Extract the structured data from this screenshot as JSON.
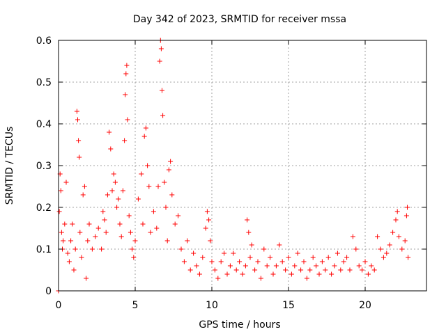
{
  "chart_data": {
    "type": "scatter",
    "title": "Day 342 of 2023, SRMTID for receiver mssa",
    "xlabel": "GPS time / hours",
    "ylabel": "SRMTID / TECUs",
    "xlim": [
      0,
      24
    ],
    "ylim": [
      0,
      0.6
    ],
    "xticks": [
      0,
      5,
      10,
      15,
      20
    ],
    "xtick_labels": [
      "0",
      "5",
      "10",
      "15",
      "20"
    ],
    "yticks": [
      0,
      0.1,
      0.2,
      0.3,
      0.4,
      0.5,
      0.6
    ],
    "ytick_labels": [
      "0",
      "0.1",
      "0.2",
      "0.3",
      "0.4",
      "0.5",
      "0.6"
    ],
    "grid": true,
    "marker": "+",
    "color": "#ff0000",
    "series": [
      {
        "name": "mssa",
        "points": [
          [
            0.0,
            0.0
          ],
          [
            0.05,
            0.19
          ],
          [
            0.1,
            0.28
          ],
          [
            0.15,
            0.24
          ],
          [
            0.2,
            0.14
          ],
          [
            0.25,
            0.1
          ],
          [
            0.3,
            0.12
          ],
          [
            0.4,
            0.16
          ],
          [
            0.5,
            0.26
          ],
          [
            0.6,
            0.09
          ],
          [
            0.7,
            0.07
          ],
          [
            0.8,
            0.12
          ],
          [
            0.9,
            0.16
          ],
          [
            1.0,
            0.05
          ],
          [
            1.1,
            0.1
          ],
          [
            1.2,
            0.43
          ],
          [
            1.25,
            0.41
          ],
          [
            1.3,
            0.36
          ],
          [
            1.35,
            0.32
          ],
          [
            1.4,
            0.14
          ],
          [
            1.5,
            0.08
          ],
          [
            1.6,
            0.23
          ],
          [
            1.7,
            0.25
          ],
          [
            1.8,
            0.03
          ],
          [
            1.9,
            0.12
          ],
          [
            2.0,
            0.16
          ],
          [
            2.2,
            0.1
          ],
          [
            2.4,
            0.13
          ],
          [
            2.6,
            0.15
          ],
          [
            2.8,
            0.1
          ],
          [
            2.9,
            0.19
          ],
          [
            3.0,
            0.17
          ],
          [
            3.1,
            0.14
          ],
          [
            3.2,
            0.23
          ],
          [
            3.3,
            0.38
          ],
          [
            3.4,
            0.34
          ],
          [
            3.5,
            0.24
          ],
          [
            3.6,
            0.28
          ],
          [
            3.7,
            0.26
          ],
          [
            3.8,
            0.2
          ],
          [
            3.9,
            0.22
          ],
          [
            4.0,
            0.16
          ],
          [
            4.1,
            0.13
          ],
          [
            4.2,
            0.24
          ],
          [
            4.3,
            0.36
          ],
          [
            4.35,
            0.47
          ],
          [
            4.4,
            0.52
          ],
          [
            4.45,
            0.54
          ],
          [
            4.5,
            0.41
          ],
          [
            4.6,
            0.18
          ],
          [
            4.7,
            0.14
          ],
          [
            4.8,
            0.1
          ],
          [
            4.9,
            0.08
          ],
          [
            5.0,
            0.12
          ],
          [
            5.2,
            0.22
          ],
          [
            5.4,
            0.28
          ],
          [
            5.5,
            0.16
          ],
          [
            5.6,
            0.37
          ],
          [
            5.7,
            0.39
          ],
          [
            5.8,
            0.3
          ],
          [
            5.9,
            0.25
          ],
          [
            6.0,
            0.14
          ],
          [
            6.2,
            0.19
          ],
          [
            6.4,
            0.15
          ],
          [
            6.5,
            0.25
          ],
          [
            6.6,
            0.55
          ],
          [
            6.65,
            0.6
          ],
          [
            6.7,
            0.58
          ],
          [
            6.75,
            0.48
          ],
          [
            6.8,
            0.42
          ],
          [
            6.9,
            0.26
          ],
          [
            7.0,
            0.2
          ],
          [
            7.1,
            0.12
          ],
          [
            7.2,
            0.29
          ],
          [
            7.3,
            0.31
          ],
          [
            7.4,
            0.23
          ],
          [
            7.6,
            0.16
          ],
          [
            7.8,
            0.18
          ],
          [
            8.0,
            0.1
          ],
          [
            8.2,
            0.07
          ],
          [
            8.4,
            0.12
          ],
          [
            8.6,
            0.05
          ],
          [
            8.8,
            0.09
          ],
          [
            9.0,
            0.06
          ],
          [
            9.2,
            0.04
          ],
          [
            9.4,
            0.08
          ],
          [
            9.6,
            0.15
          ],
          [
            9.7,
            0.19
          ],
          [
            9.8,
            0.17
          ],
          [
            9.9,
            0.12
          ],
          [
            10.0,
            0.07
          ],
          [
            10.2,
            0.05
          ],
          [
            10.4,
            0.03
          ],
          [
            10.6,
            0.07
          ],
          [
            10.8,
            0.09
          ],
          [
            11.0,
            0.04
          ],
          [
            11.2,
            0.06
          ],
          [
            11.4,
            0.09
          ],
          [
            11.6,
            0.05
          ],
          [
            11.8,
            0.07
          ],
          [
            12.0,
            0.04
          ],
          [
            12.2,
            0.06
          ],
          [
            12.3,
            0.17
          ],
          [
            12.4,
            0.14
          ],
          [
            12.5,
            0.08
          ],
          [
            12.6,
            0.11
          ],
          [
            12.8,
            0.05
          ],
          [
            13.0,
            0.07
          ],
          [
            13.2,
            0.03
          ],
          [
            13.4,
            0.1
          ],
          [
            13.6,
            0.06
          ],
          [
            13.8,
            0.08
          ],
          [
            14.0,
            0.04
          ],
          [
            14.2,
            0.06
          ],
          [
            14.4,
            0.11
          ],
          [
            14.6,
            0.07
          ],
          [
            14.8,
            0.05
          ],
          [
            15.0,
            0.08
          ],
          [
            15.2,
            0.04
          ],
          [
            15.4,
            0.06
          ],
          [
            15.6,
            0.09
          ],
          [
            15.8,
            0.05
          ],
          [
            16.0,
            0.07
          ],
          [
            16.2,
            0.03
          ],
          [
            16.4,
            0.05
          ],
          [
            16.6,
            0.08
          ],
          [
            16.8,
            0.06
          ],
          [
            17.0,
            0.04
          ],
          [
            17.2,
            0.07
          ],
          [
            17.4,
            0.05
          ],
          [
            17.6,
            0.08
          ],
          [
            17.8,
            0.04
          ],
          [
            18.0,
            0.06
          ],
          [
            18.2,
            0.09
          ],
          [
            18.4,
            0.05
          ],
          [
            18.6,
            0.07
          ],
          [
            18.8,
            0.08
          ],
          [
            19.0,
            0.05
          ],
          [
            19.2,
            0.13
          ],
          [
            19.4,
            0.1
          ],
          [
            19.6,
            0.06
          ],
          [
            19.8,
            0.05
          ],
          [
            20.0,
            0.07
          ],
          [
            20.2,
            0.04
          ],
          [
            20.4,
            0.06
          ],
          [
            20.6,
            0.05
          ],
          [
            20.8,
            0.13
          ],
          [
            21.0,
            0.1
          ],
          [
            21.2,
            0.08
          ],
          [
            21.4,
            0.09
          ],
          [
            21.6,
            0.11
          ],
          [
            21.8,
            0.14
          ],
          [
            22.0,
            0.17
          ],
          [
            22.1,
            0.19
          ],
          [
            22.2,
            0.13
          ],
          [
            22.4,
            0.1
          ],
          [
            22.6,
            0.12
          ],
          [
            22.7,
            0.18
          ],
          [
            22.75,
            0.2
          ],
          [
            22.8,
            0.08
          ]
        ]
      }
    ]
  }
}
